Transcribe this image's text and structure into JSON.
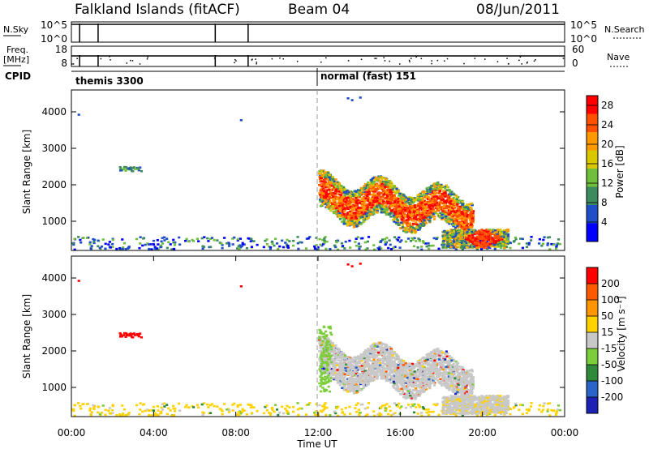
{
  "chart_data": [
    {
      "type": "line",
      "panel": "sky-noise",
      "title": "Falkland Islands (fitACF)",
      "beam": "Beam 04",
      "date": "08/Jun/2011",
      "left_label": "N.Sky",
      "right_label": "N.Search",
      "left_ticks": [
        "10^5",
        "10^0"
      ],
      "right_ticks": [
        "10^5",
        "10^0"
      ],
      "x_range_hours": [
        0,
        24
      ],
      "spike_hours": [
        0.4,
        1.3,
        7.0,
        8.6
      ]
    },
    {
      "type": "line",
      "panel": "frequency-nave",
      "left_label": "Freq.",
      "left_unit": "[MHz]",
      "right_label": "Nave",
      "left_ticks": [
        "18",
        "8"
      ],
      "right_ticks": [
        "60",
        "0"
      ],
      "spike_hours": [
        0.4,
        1.3,
        7.0,
        8.6
      ]
    },
    {
      "type": "table",
      "panel": "cpid",
      "label": "CPID",
      "segments": [
        {
          "start_hour": 0,
          "text": "themis 3300"
        },
        {
          "start_hour": 12,
          "text": "normal (fast) 151"
        }
      ]
    },
    {
      "type": "heatmap",
      "panel": "power",
      "ylabel": "Slant Range [km]",
      "ylim": [
        200,
        4600
      ],
      "y_ticks": [
        1000,
        2000,
        3000,
        4000
      ],
      "xlim": [
        0,
        24
      ],
      "colorbar_label": "Power [dB]",
      "colorbar_ticks": [
        4,
        8,
        12,
        16,
        20,
        24,
        28
      ],
      "colorbar_range": [
        0,
        30
      ],
      "colors": [
        "#0000ff",
        "#1f4fc8",
        "#3c8a5e",
        "#6fbf3c",
        "#d9c800",
        "#ff9900",
        "#ff5000",
        "#ff0000"
      ]
    },
    {
      "type": "heatmap",
      "panel": "velocity",
      "ylabel": "Slant Range [km]",
      "ylim": [
        200,
        4600
      ],
      "y_ticks": [
        1000,
        2000,
        3000,
        4000
      ],
      "xlim": [
        0,
        24
      ],
      "xlabel": "Time UT",
      "x_ticks": [
        "00:00",
        "04:00",
        "08:00",
        "12:00",
        "16:00",
        "20:00",
        "00:00"
      ],
      "colorbar_label": "Velocity [m s⁻¹]",
      "colorbar_ticks": [
        200,
        100,
        50,
        15,
        -15,
        -50,
        -100,
        -200
      ],
      "colors": [
        "#1e22b4",
        "#2a64c8",
        "#2e8a3a",
        "#7ccd3c",
        "#c8c8c8",
        "#ffd200",
        "#ff9600",
        "#ff5a00",
        "#ff0000"
      ]
    }
  ]
}
